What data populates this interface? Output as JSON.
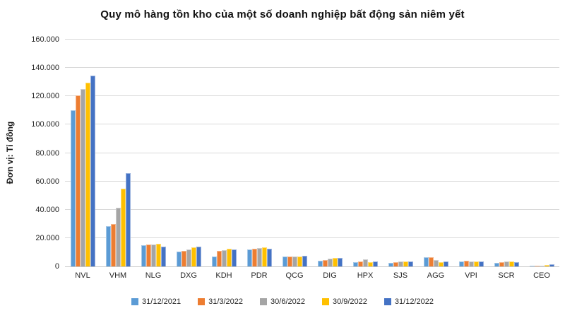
{
  "title": "Quy mô hàng tồn kho của một số doanh nghiệp bất động sản niêm yết",
  "chart_data": {
    "type": "bar",
    "title": "Quy mô hàng tồn kho của một số doanh nghiệp bất động sản niêm yết",
    "ylabel": "Đơn vị: Tỉ đồng",
    "xlabel": "",
    "ylim": [
      0,
      160000
    ],
    "ytick_step": 20000,
    "ytick_labels": [
      "0",
      "20.000",
      "40.000",
      "60.000",
      "80.000",
      "100.000",
      "120.000",
      "140.000",
      "160.000"
    ],
    "grid": true,
    "legend_position": "bottom",
    "categories": [
      "NVL",
      "VHM",
      "NLG",
      "DXG",
      "KDH",
      "PDR",
      "QCG",
      "DIG",
      "HPX",
      "SJS",
      "AGG",
      "VPI",
      "SCR",
      "CEO"
    ],
    "series": [
      {
        "name": "31/12/2021",
        "color": "#5B9BD5",
        "values": [
          110000,
          28600,
          15100,
          10300,
          7200,
          11800,
          7200,
          3900,
          3000,
          2400,
          6300,
          3300,
          2500,
          400
        ]
      },
      {
        "name": "31/3/2022",
        "color": "#ED7D31",
        "values": [
          120700,
          30000,
          15600,
          11000,
          10800,
          12500,
          7200,
          4400,
          3500,
          3200,
          6600,
          4100,
          2800,
          500
        ]
      },
      {
        "name": "30/6/2022",
        "color": "#A5A5A5",
        "values": [
          125000,
          41500,
          15700,
          12200,
          11700,
          13200,
          7200,
          5400,
          4900,
          3300,
          4600,
          3700,
          3700,
          700
        ]
      },
      {
        "name": "30/9/2022",
        "color": "#FFC000",
        "values": [
          129700,
          54600,
          16100,
          13300,
          12700,
          13700,
          7200,
          6100,
          3200,
          3700,
          3000,
          3500,
          3500,
          1000
        ]
      },
      {
        "name": "31/12/2022",
        "color": "#4472C4",
        "values": [
          134500,
          65800,
          14100,
          14000,
          12000,
          12700,
          7500,
          5900,
          3500,
          3400,
          3300,
          3500,
          2900,
          1300
        ]
      }
    ]
  }
}
